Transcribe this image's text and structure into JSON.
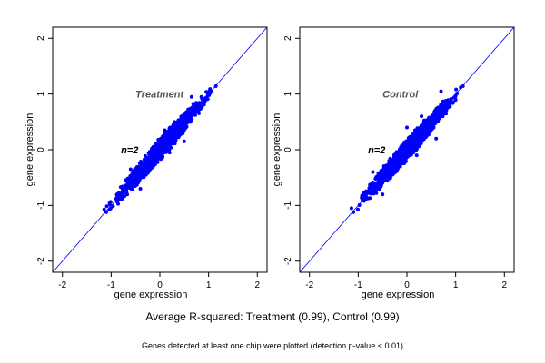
{
  "caption": {
    "main": "Average R-squared: Treatment (0.99), Control (0.99)",
    "note": "Genes detected at least one chip were plotted (detection p-value < 0.01)"
  },
  "colors": {
    "points": "#0000ff",
    "diagonal": "#0000ff",
    "annotation": "#555555",
    "axes": "#000000"
  },
  "chart_data": [
    {
      "type": "scatter",
      "title": "",
      "xlabel": "gene expression",
      "ylabel": "gene expression",
      "xlim": [
        -2.2,
        2.2
      ],
      "ylim": [
        -2.2,
        2.2
      ],
      "xticks": [
        -2,
        -1,
        0,
        1,
        2
      ],
      "yticks": [
        -2,
        -1,
        0,
        1,
        2
      ],
      "grid": false,
      "reference_line": "y = x",
      "annotations": [
        {
          "text": "Treatment",
          "x": -0.5,
          "y": 1.0
        },
        {
          "text": "n=2",
          "x": -0.8,
          "y": 0.0
        }
      ],
      "series": [
        {
          "point_count_approx": 4000,
          "x_range": [
            -1.15,
            1.2
          ],
          "y_range": [
            -1.15,
            1.15
          ],
          "r_squared": 0.99,
          "sample_points": [
            [
              -1.1,
              -1.12
            ],
            [
              -0.9,
              -0.88
            ],
            [
              -0.7,
              -0.73
            ],
            [
              -0.5,
              -0.46
            ],
            [
              -0.3,
              -0.35
            ],
            [
              -0.1,
              -0.05
            ],
            [
              0.0,
              0.02
            ],
            [
              0.2,
              0.18
            ],
            [
              0.4,
              0.45
            ],
            [
              0.6,
              0.58
            ],
            [
              0.8,
              0.84
            ],
            [
              1.0,
              0.98
            ],
            [
              1.15,
              1.14
            ],
            [
              0.3,
              0.5
            ],
            [
              0.5,
              0.15
            ],
            [
              -0.4,
              -0.7
            ],
            [
              -0.6,
              -0.35
            ],
            [
              0.2,
              -0.05
            ],
            [
              0.1,
              0.35
            ],
            [
              0.65,
              0.95
            ]
          ]
        }
      ]
    },
    {
      "type": "scatter",
      "title": "",
      "xlabel": "gene expression",
      "ylabel": "gene expression",
      "xlim": [
        -2.2,
        2.2
      ],
      "ylim": [
        -2.2,
        2.2
      ],
      "xticks": [
        -2,
        -1,
        0,
        1,
        2
      ],
      "yticks": [
        -2,
        -1,
        0,
        1,
        2
      ],
      "grid": false,
      "reference_line": "y = x",
      "annotations": [
        {
          "text": "Control",
          "x": -0.5,
          "y": 1.0
        },
        {
          "text": "n=2",
          "x": -0.8,
          "y": 0.0
        }
      ],
      "series": [
        {
          "point_count_approx": 4000,
          "x_range": [
            -1.15,
            1.2
          ],
          "y_range": [
            -1.15,
            1.15
          ],
          "r_squared": 0.99,
          "sample_points": [
            [
              -1.1,
              -1.12
            ],
            [
              -0.9,
              -0.85
            ],
            [
              -0.7,
              -0.75
            ],
            [
              -0.5,
              -0.42
            ],
            [
              -0.3,
              -0.38
            ],
            [
              -0.1,
              -0.02
            ],
            [
              0.0,
              0.05
            ],
            [
              0.2,
              0.15
            ],
            [
              0.4,
              0.5
            ],
            [
              0.6,
              0.55
            ],
            [
              0.8,
              0.88
            ],
            [
              1.0,
              0.97
            ],
            [
              1.15,
              1.14
            ],
            [
              0.3,
              0.6
            ],
            [
              0.6,
              0.2
            ],
            [
              -0.5,
              -0.8
            ],
            [
              -0.7,
              -0.4
            ],
            [
              0.2,
              -0.1
            ],
            [
              0.0,
              0.4
            ],
            [
              0.7,
              1.05
            ]
          ]
        }
      ]
    }
  ]
}
